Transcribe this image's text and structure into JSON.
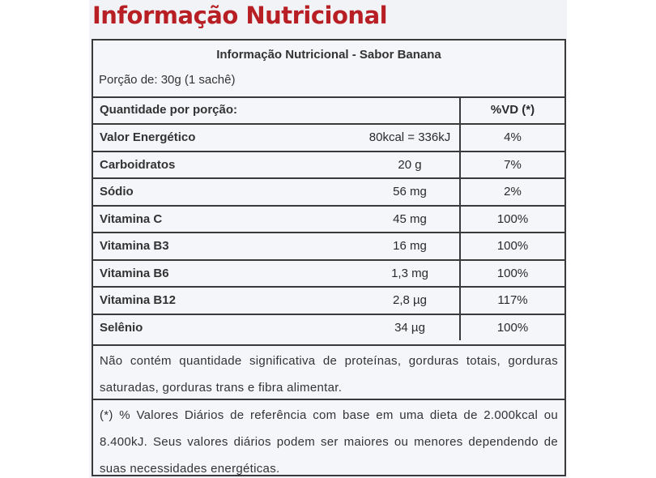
{
  "page": {
    "title": "Informação Nutricional"
  },
  "header": {
    "title": "Informação Nutricional - Sabor Banana",
    "portion": "Porção de: 30g (1 sachê)"
  },
  "table": {
    "col_headers": {
      "name": "Quantidade por porção:",
      "vd": "%VD (*)"
    },
    "rows": [
      {
        "name": "Valor Energético",
        "amount": "80kcal = 336kJ",
        "vd": "4%"
      },
      {
        "name": "Carboidratos",
        "amount": "20 g",
        "vd": "7%"
      },
      {
        "name": "Sódio",
        "amount": "56 mg",
        "vd": "2%"
      },
      {
        "name": "Vitamina C",
        "amount": "45 mg",
        "vd": "100%"
      },
      {
        "name": "Vitamina B3",
        "amount": "16 mg",
        "vd": "100%"
      },
      {
        "name": "Vitamina B6",
        "amount": "1,3 mg",
        "vd": "100%"
      },
      {
        "name": "Vitamina B12",
        "amount": "2,8 µg",
        "vd": "117%"
      },
      {
        "name": "Selênio",
        "amount": "34 µg",
        "vd": "100%"
      }
    ]
  },
  "notes": {
    "insignificant": "Não contém quantidade significativa de proteínas, gorduras totais, gorduras saturadas, gorduras trans e fibra alimentar.",
    "reference": "(*) % Valores Diários de referência com base em uma dieta de 2.000kcal ou 8.400kJ. Seus valores diários podem ser maiores ou menores dependendo de suas necessidades energéticas."
  }
}
